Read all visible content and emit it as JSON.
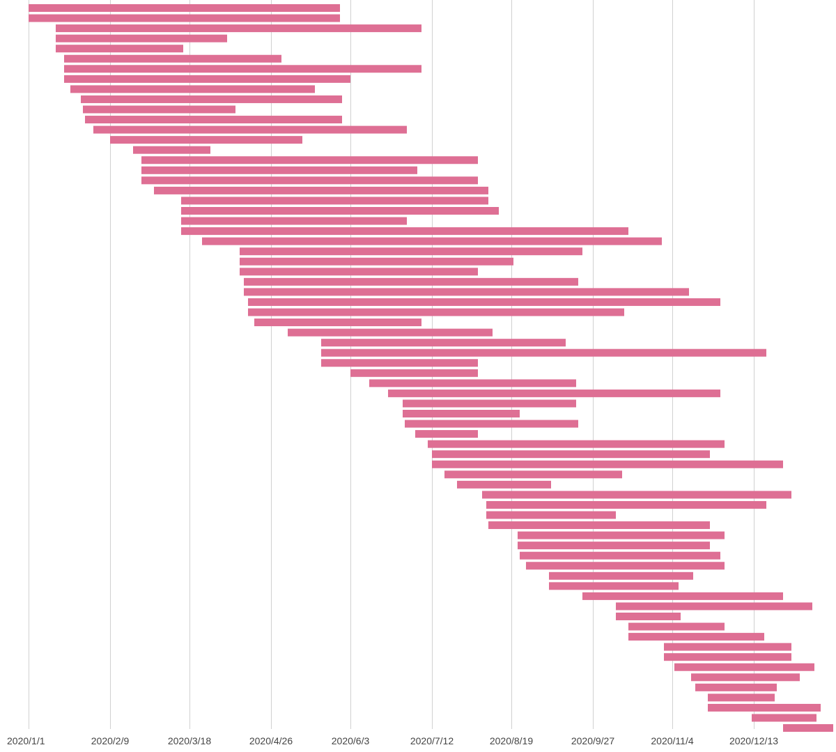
{
  "chart_data": {
    "type": "gantt",
    "title": "",
    "xlabel": "",
    "ylabel": "",
    "x_axis": {
      "type": "date",
      "tick_labels": [
        "2020/1/1",
        "2020/2/9",
        "2020/3/18",
        "2020/4/26",
        "2020/6/3",
        "2020/7/12",
        "2020/8/19",
        "2020/9/27",
        "2020/11/4",
        "2020/12/13"
      ],
      "tick_day_offsets": [
        0,
        39,
        77,
        116,
        154,
        193,
        231,
        270,
        308,
        347
      ],
      "range_days": [
        0,
        385
      ]
    },
    "grid": "vertical",
    "bar_color": "#de6f94",
    "intervals_day_offsets": [
      [
        0,
        149
      ],
      [
        0,
        149
      ],
      [
        13,
        188
      ],
      [
        13,
        95
      ],
      [
        13,
        74
      ],
      [
        17,
        121
      ],
      [
        17,
        188
      ],
      [
        17,
        154
      ],
      [
        20,
        137
      ],
      [
        25,
        150
      ],
      [
        26,
        99
      ],
      [
        27,
        150
      ],
      [
        31,
        181
      ],
      [
        39,
        131
      ],
      [
        50,
        87
      ],
      [
        54,
        215
      ],
      [
        54,
        186
      ],
      [
        54,
        215
      ],
      [
        60,
        220
      ],
      [
        73,
        220
      ],
      [
        73,
        225
      ],
      [
        73,
        181
      ],
      [
        73,
        287
      ],
      [
        83,
        303
      ],
      [
        101,
        265
      ],
      [
        101,
        232
      ],
      [
        101,
        215
      ],
      [
        103,
        263
      ],
      [
        103,
        316
      ],
      [
        105,
        331
      ],
      [
        105,
        285
      ],
      [
        108,
        188
      ],
      [
        124,
        222
      ],
      [
        140,
        257
      ],
      [
        140,
        353
      ],
      [
        140,
        215
      ],
      [
        154,
        215
      ],
      [
        163,
        262
      ],
      [
        172,
        331
      ],
      [
        179,
        262
      ],
      [
        179,
        235
      ],
      [
        180,
        263
      ],
      [
        185,
        215
      ],
      [
        191,
        333
      ],
      [
        193,
        326
      ],
      [
        193,
        361
      ],
      [
        199,
        284
      ],
      [
        205,
        250
      ],
      [
        217,
        365
      ],
      [
        219,
        353
      ],
      [
        219,
        281
      ],
      [
        220,
        326
      ],
      [
        234,
        333
      ],
      [
        234,
        326
      ],
      [
        235,
        331
      ],
      [
        238,
        333
      ],
      [
        249,
        318
      ],
      [
        249,
        311
      ],
      [
        265,
        361
      ],
      [
        281,
        375
      ],
      [
        281,
        312
      ],
      [
        287,
        333
      ],
      [
        287,
        352
      ],
      [
        304,
        365
      ],
      [
        304,
        365
      ],
      [
        309,
        376
      ],
      [
        317,
        369
      ],
      [
        319,
        358
      ],
      [
        325,
        357
      ],
      [
        325,
        379
      ],
      [
        346,
        377
      ],
      [
        361,
        385
      ]
    ]
  }
}
